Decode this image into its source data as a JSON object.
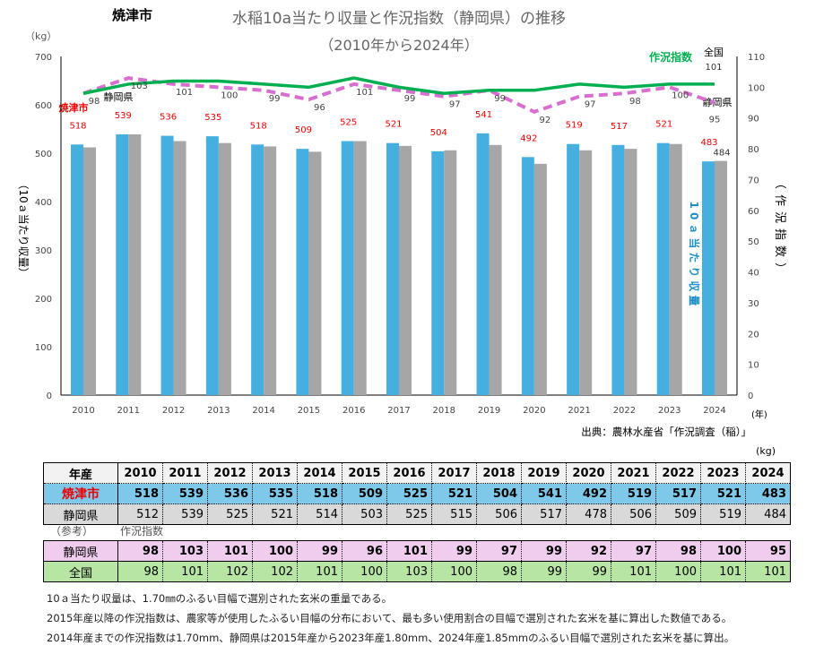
{
  "chart_data": {
    "type": "bar+line",
    "corner_label": "焼津市",
    "title": "水稲10a当たり収量と作況指数（静岡県）の推移",
    "subtitle": "（2010年から2024年）",
    "y_unit": "（kg）",
    "ylabel": "（10ａ当たり収量）",
    "y2label": "（作況指数）",
    "inner_label": "10ａ当たり収量",
    "x_unit": "(年)",
    "source": "出典：農林水産省「作況調査（稲）」",
    "ylim": [
      0,
      700
    ],
    "yticks": [
      0,
      100,
      200,
      300,
      400,
      500,
      600,
      700
    ],
    "y2lim": [
      0,
      110
    ],
    "y2ticks": [
      0,
      10,
      20,
      30,
      40,
      50,
      60,
      70,
      80,
      90,
      100,
      110
    ],
    "categories": [
      "2010",
      "2011",
      "2012",
      "2013",
      "2014",
      "2015",
      "2016",
      "2017",
      "2018",
      "2019",
      "2020",
      "2021",
      "2022",
      "2023",
      "2024"
    ],
    "series": [
      {
        "name": "焼津市",
        "type": "bar",
        "color": "#45b0e0",
        "values": [
          518,
          539,
          536,
          535,
          518,
          509,
          525,
          521,
          504,
          541,
          492,
          519,
          517,
          521,
          483
        ]
      },
      {
        "name": "静岡県",
        "type": "bar",
        "color": "#a6a6a6",
        "values": [
          512,
          539,
          525,
          521,
          514,
          503,
          525,
          515,
          506,
          517,
          478,
          506,
          509,
          519,
          484
        ]
      },
      {
        "name": "静岡県",
        "type": "line-dashed",
        "axis": "right",
        "color": "#d86fd0",
        "values": [
          98,
          103,
          101,
          100,
          99,
          96,
          101,
          99,
          97,
          99,
          92,
          97,
          98,
          100,
          95
        ]
      },
      {
        "name": "全国",
        "type": "line",
        "axis": "right",
        "color": "#00b050",
        "values": [
          98,
          101,
          102,
          102,
          101,
          100,
          103,
          100,
          98,
          99,
          99,
          101,
          100,
          101,
          101
        ]
      }
    ],
    "legend_index": "作況指数",
    "grid": false
  },
  "table": {
    "unit": "(kg)",
    "header": "年産",
    "yaizu_label": "焼津市",
    "shizuoka_label": "静岡県",
    "ref_label": "（参考）",
    "ref_title": "作況指数",
    "idx_shizuoka_label": "静岡県",
    "idx_national_label": "全国"
  },
  "notes": [
    "10ａ当たり収量は、1.70㎜のふるい目幅で選別された玄米の重量である。",
    "2015年産以降の作況指数は、農家等が使用したふるい目幅の分布において、最も多い使用割合の目幅で選別された玄米を基に算出した数値である。",
    "2014年産までの作況指数は1.70mm、静岡県は2015年産から2023年産1.80mm、2024年産1.85mmのふるい目幅で選別された玄米を基に算出。"
  ]
}
